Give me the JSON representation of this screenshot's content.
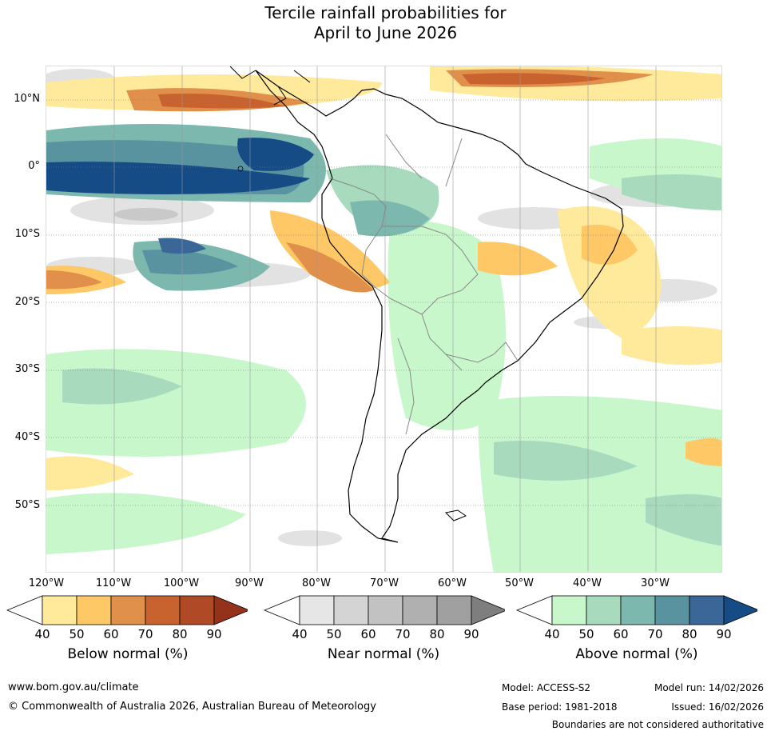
{
  "title": {
    "line1": "Tercile rainfall probabilities for",
    "line2": "April to June 2026"
  },
  "map": {
    "lat_labels": [
      "10°N",
      "0°",
      "10°S",
      "20°S",
      "30°S",
      "40°S",
      "50°S"
    ],
    "lon_labels": [
      "120°W",
      "110°W",
      "100°W",
      "90°W",
      "80°W",
      "70°W",
      "60°W",
      "50°W",
      "40°W",
      "30°W"
    ]
  },
  "colorbars": [
    {
      "name": "below",
      "title": "Below normal (%)",
      "ticks": [
        "40",
        "50",
        "60",
        "70",
        "80",
        "90"
      ],
      "colors": [
        "#ffffff",
        "#ffe99b",
        "#fdc865",
        "#e0904a",
        "#c8632f",
        "#b04a26",
        "#95321c"
      ]
    },
    {
      "name": "near",
      "title": "Near normal (%)",
      "ticks": [
        "40",
        "50",
        "60",
        "70",
        "80",
        "90"
      ],
      "colors": [
        "#ffffff",
        "#e6e6e6",
        "#d4d4d4",
        "#c2c2c2",
        "#b0b0b0",
        "#a0a0a0",
        "#7e7e7e"
      ]
    },
    {
      "name": "above",
      "title": "Above normal (%)",
      "ticks": [
        "40",
        "50",
        "60",
        "70",
        "80",
        "90"
      ],
      "colors": [
        "#ffffff",
        "#c8f7cc",
        "#a8dbbd",
        "#7cb8ad",
        "#5a93a0",
        "#3a6698",
        "#164c86"
      ]
    }
  ],
  "footer": {
    "website": "www.bom.gov.au/climate",
    "copyright": "© Commonwealth of Australia 2026, Australian Bureau of Meteorology",
    "model": "Model: ACCESS-S2",
    "base_period": "Base period: 1981-2018",
    "model_run": "Model run: 14/02/2026",
    "issued": "Issued: 16/02/2026",
    "disclaimer": "Boundaries are not considered authoritative"
  }
}
